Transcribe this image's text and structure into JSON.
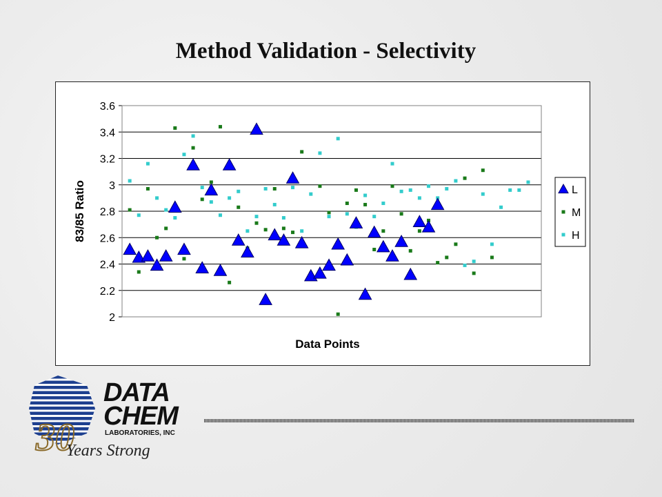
{
  "slide": {
    "title": "Method Validation - Selectivity"
  },
  "logo": {
    "line1": "DATA",
    "line2": "CHEM",
    "line3": "LABORATORIES, INC",
    "tagline": "Years Strong",
    "number": "30"
  },
  "colors": {
    "L": "#0000ff",
    "M": "#1a7a1a",
    "H": "#33cccc",
    "plot_bg": "#ffffff",
    "grid": "#000000"
  },
  "chart_data": {
    "type": "scatter",
    "title": "",
    "xlabel": "Data Points",
    "ylabel": "83/85 Ratio",
    "ylim": [
      2,
      3.6
    ],
    "yticks": [
      "2",
      "2.2",
      "2.4",
      "2.6",
      "2.8",
      "3",
      "3.2",
      "3.4",
      "3.6"
    ],
    "grid": true,
    "legend_position": "right",
    "series": [
      {
        "name": "L",
        "marker": "triangle",
        "points": [
          [
            1,
            2.51
          ],
          [
            2,
            2.45
          ],
          [
            3,
            2.46
          ],
          [
            4,
            2.39
          ],
          [
            5,
            2.46
          ],
          [
            6,
            2.83
          ],
          [
            7,
            2.51
          ],
          [
            8,
            3.15
          ],
          [
            9,
            2.37
          ],
          [
            10,
            2.96
          ],
          [
            11,
            2.35
          ],
          [
            12,
            3.15
          ],
          [
            13,
            2.58
          ],
          [
            14,
            2.49
          ],
          [
            15,
            3.42
          ],
          [
            16,
            2.13
          ],
          [
            17,
            2.62
          ],
          [
            18,
            2.58
          ],
          [
            19,
            3.05
          ],
          [
            20,
            2.56
          ],
          [
            21,
            2.31
          ],
          [
            22,
            2.33
          ],
          [
            23,
            2.39
          ],
          [
            24,
            2.55
          ],
          [
            25,
            2.43
          ],
          [
            26,
            2.71
          ],
          [
            27,
            2.17
          ],
          [
            28,
            2.64
          ],
          [
            29,
            2.53
          ],
          [
            30,
            2.46
          ],
          [
            31,
            2.57
          ],
          [
            32,
            2.32
          ],
          [
            33,
            2.72
          ],
          [
            34,
            2.68
          ],
          [
            35,
            2.85
          ]
        ]
      },
      {
        "name": "M",
        "marker": "square",
        "points": [
          [
            1,
            2.81
          ],
          [
            2,
            2.34
          ],
          [
            3,
            2.97
          ],
          [
            4,
            2.6
          ],
          [
            5,
            2.67
          ],
          [
            6,
            3.43
          ],
          [
            7,
            2.44
          ],
          [
            8,
            3.28
          ],
          [
            9,
            2.89
          ],
          [
            10,
            3.02
          ],
          [
            11,
            3.44
          ],
          [
            12,
            2.26
          ],
          [
            13,
            2.83
          ],
          [
            14,
            2.52
          ],
          [
            15,
            2.71
          ],
          [
            16,
            2.66
          ],
          [
            17,
            2.97
          ],
          [
            18,
            2.67
          ],
          [
            19,
            2.64
          ],
          [
            20,
            3.25
          ],
          [
            21,
            2.33
          ],
          [
            22,
            2.99
          ],
          [
            23,
            2.79
          ],
          [
            24,
            2.02
          ],
          [
            25,
            2.86
          ],
          [
            26,
            2.96
          ],
          [
            27,
            2.85
          ],
          [
            28,
            2.51
          ],
          [
            29,
            2.65
          ],
          [
            30,
            2.99
          ],
          [
            31,
            2.78
          ],
          [
            32,
            2.5
          ],
          [
            33,
            2.65
          ],
          [
            34,
            2.73
          ],
          [
            35,
            2.41
          ],
          [
            36,
            2.45
          ],
          [
            37,
            2.55
          ],
          [
            38,
            3.05
          ],
          [
            39,
            2.33
          ],
          [
            40,
            3.11
          ],
          [
            41,
            2.45
          ]
        ]
      },
      {
        "name": "H",
        "marker": "square",
        "points": [
          [
            1,
            3.03
          ],
          [
            2,
            2.77
          ],
          [
            3,
            3.16
          ],
          [
            4,
            2.9
          ],
          [
            5,
            2.81
          ],
          [
            6,
            2.75
          ],
          [
            7,
            3.23
          ],
          [
            8,
            3.37
          ],
          [
            9,
            2.98
          ],
          [
            10,
            2.87
          ],
          [
            11,
            2.77
          ],
          [
            12,
            2.9
          ],
          [
            13,
            2.95
          ],
          [
            14,
            2.65
          ],
          [
            15,
            2.76
          ],
          [
            16,
            2.97
          ],
          [
            17,
            2.85
          ],
          [
            18,
            2.75
          ],
          [
            19,
            2.98
          ],
          [
            20,
            2.65
          ],
          [
            21,
            2.93
          ],
          [
            22,
            3.24
          ],
          [
            23,
            2.76
          ],
          [
            24,
            3.35
          ],
          [
            25,
            2.78
          ],
          [
            26,
            2.68
          ],
          [
            27,
            2.92
          ],
          [
            28,
            2.76
          ],
          [
            29,
            2.86
          ],
          [
            30,
            3.16
          ],
          [
            31,
            2.95
          ],
          [
            32,
            2.96
          ],
          [
            33,
            2.9
          ],
          [
            34,
            2.99
          ],
          [
            35,
            2.9
          ],
          [
            36,
            2.97
          ],
          [
            37,
            3.03
          ],
          [
            38,
            2.39
          ],
          [
            39,
            2.42
          ],
          [
            40,
            2.93
          ],
          [
            41,
            2.55
          ],
          [
            42,
            2.83
          ],
          [
            43,
            2.96
          ],
          [
            44,
            2.96
          ],
          [
            45,
            3.02
          ]
        ]
      }
    ]
  }
}
